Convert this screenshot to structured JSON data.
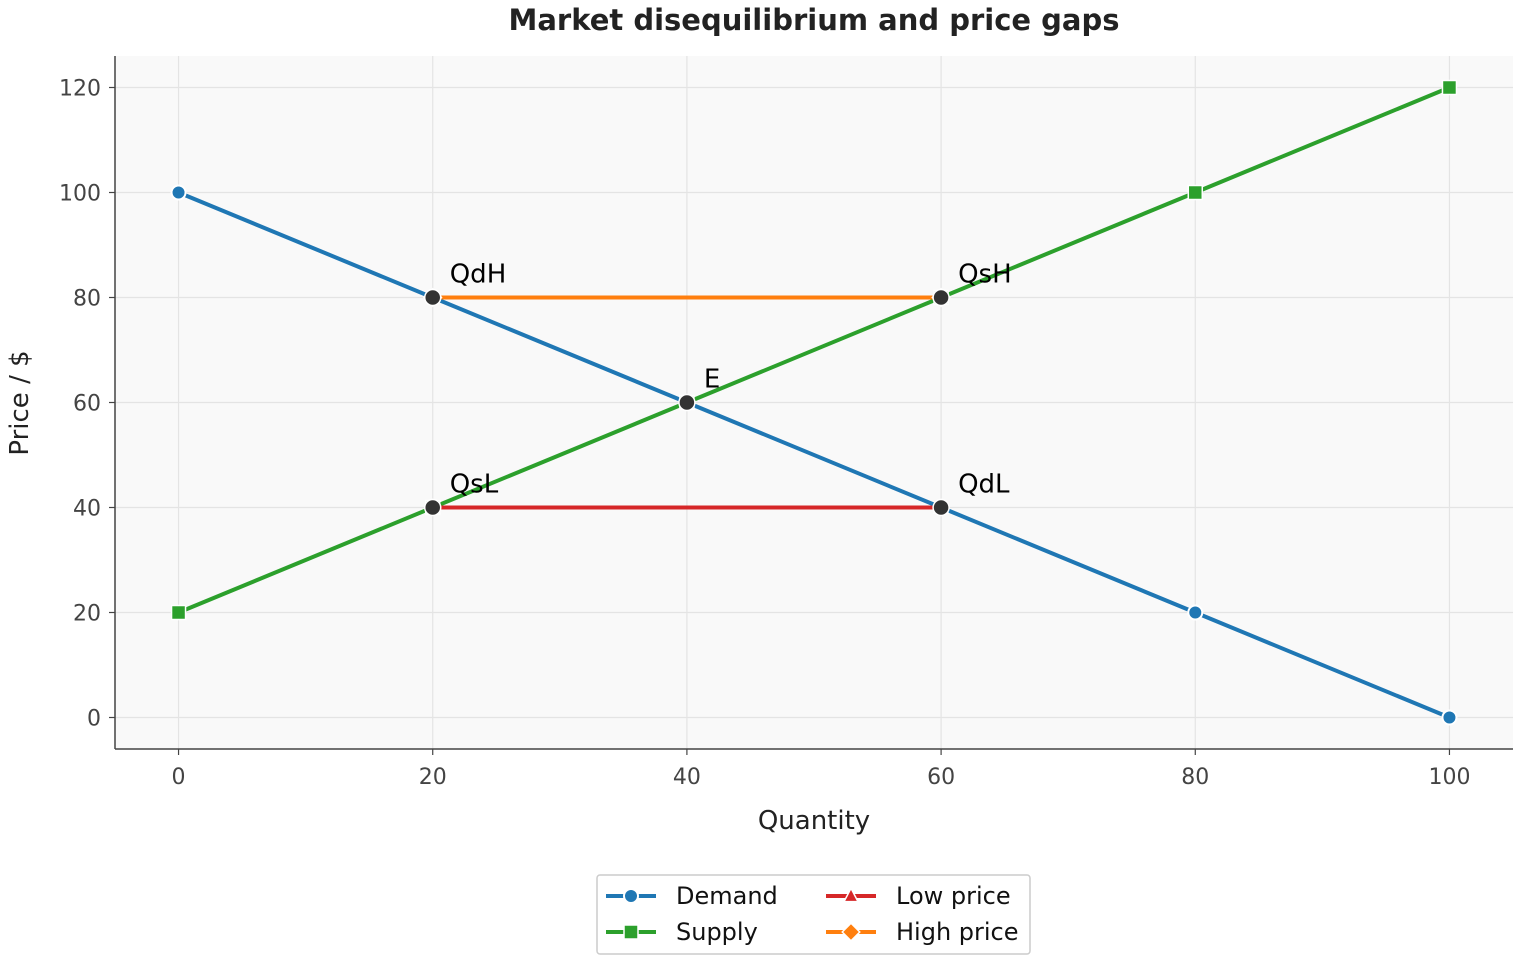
{
  "chart_data": {
    "type": "line",
    "title": "Market disequilibrium and price gaps",
    "xlabel": "Quantity",
    "ylabel": "Price / $",
    "xlim": [
      -5,
      105
    ],
    "ylim": [
      -6,
      126
    ],
    "xticks": [
      0,
      20,
      40,
      60,
      80,
      100
    ],
    "yticks": [
      0,
      20,
      40,
      60,
      80,
      100,
      120
    ],
    "grid": true,
    "legend_position": "bottom-center",
    "series": [
      {
        "name": "Demand",
        "color": "#1f77b4",
        "marker": "circle",
        "x": [
          0,
          20,
          40,
          60,
          80,
          100
        ],
        "y": [
          100,
          80,
          60,
          40,
          20,
          0
        ]
      },
      {
        "name": "Supply",
        "color": "#2ca02c",
        "marker": "square",
        "x": [
          0,
          20,
          40,
          60,
          80,
          100
        ],
        "y": [
          20,
          40,
          60,
          80,
          100,
          120
        ]
      },
      {
        "name": "Low price",
        "color": "#d62728",
        "marker": "triangle",
        "x": [
          20,
          60
        ],
        "y": [
          40,
          40
        ]
      },
      {
        "name": "High price",
        "color": "#ff7f0e",
        "marker": "diamond",
        "x": [
          20,
          60
        ],
        "y": [
          80,
          80
        ]
      }
    ],
    "annotations": [
      {
        "label": "QdH",
        "x": 20,
        "y": 80
      },
      {
        "label": "QsH",
        "x": 60,
        "y": 80
      },
      {
        "label": "E",
        "x": 40,
        "y": 60
      },
      {
        "label": "QsL",
        "x": 20,
        "y": 40
      },
      {
        "label": "QdL",
        "x": 60,
        "y": 40
      }
    ],
    "annotation_marker_color": "#333333"
  }
}
